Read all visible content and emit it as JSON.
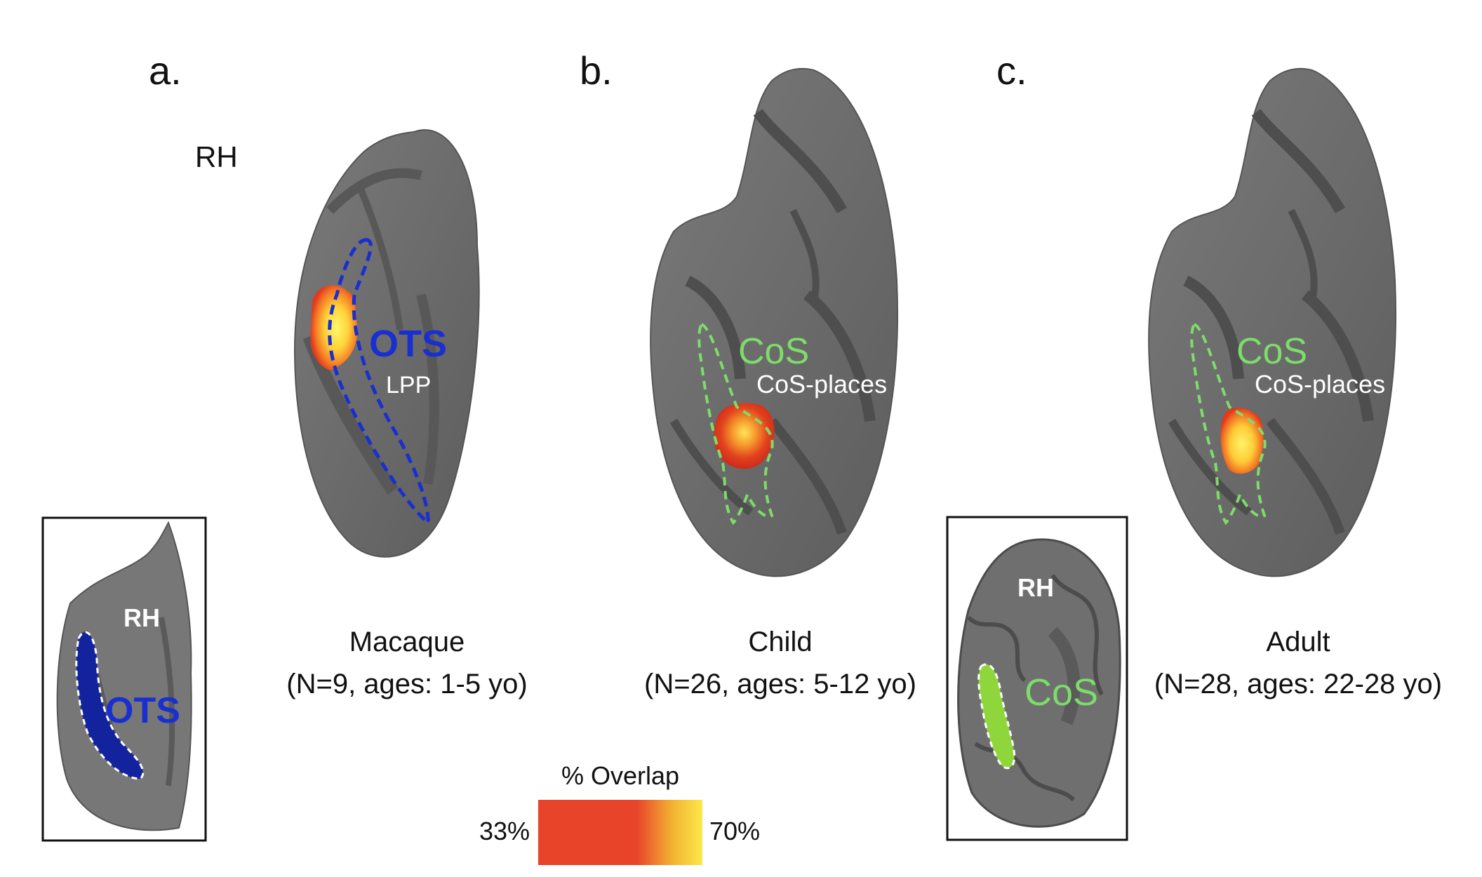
{
  "panels": {
    "a": {
      "letter": "a.",
      "hemisphere": "RH",
      "sulcus": "OTS",
      "region": "LPP",
      "species": "Macaque",
      "cohort": "(N=9, ages: 1-5 yo)",
      "inset": {
        "hemisphere": "RH",
        "sulcus": "OTS"
      }
    },
    "b": {
      "letter": "b.",
      "sulcus": "CoS",
      "region": "CoS-places",
      "species": "Child",
      "cohort": "(N=26, ages: 5-12 yo)"
    },
    "c": {
      "letter": "c.",
      "sulcus": "CoS",
      "region": "CoS-places",
      "species": "Adult",
      "cohort": "(N=28, ages: 22-28 yo)",
      "inset": {
        "hemisphere": "RH",
        "sulcus": "CoS"
      }
    }
  },
  "colorbar": {
    "title": "% Overlap",
    "min_label": "33%",
    "max_label": "70%",
    "colors": [
      "#e8442a",
      "#e8442a",
      "#f3b431",
      "#fbe84a"
    ]
  },
  "colors": {
    "brain": "#6e6e6e",
    "sulcus_dark": "#4a4a4a",
    "ots_outline": "#1a2fcf",
    "cos_outline": "#7ddc6a"
  }
}
